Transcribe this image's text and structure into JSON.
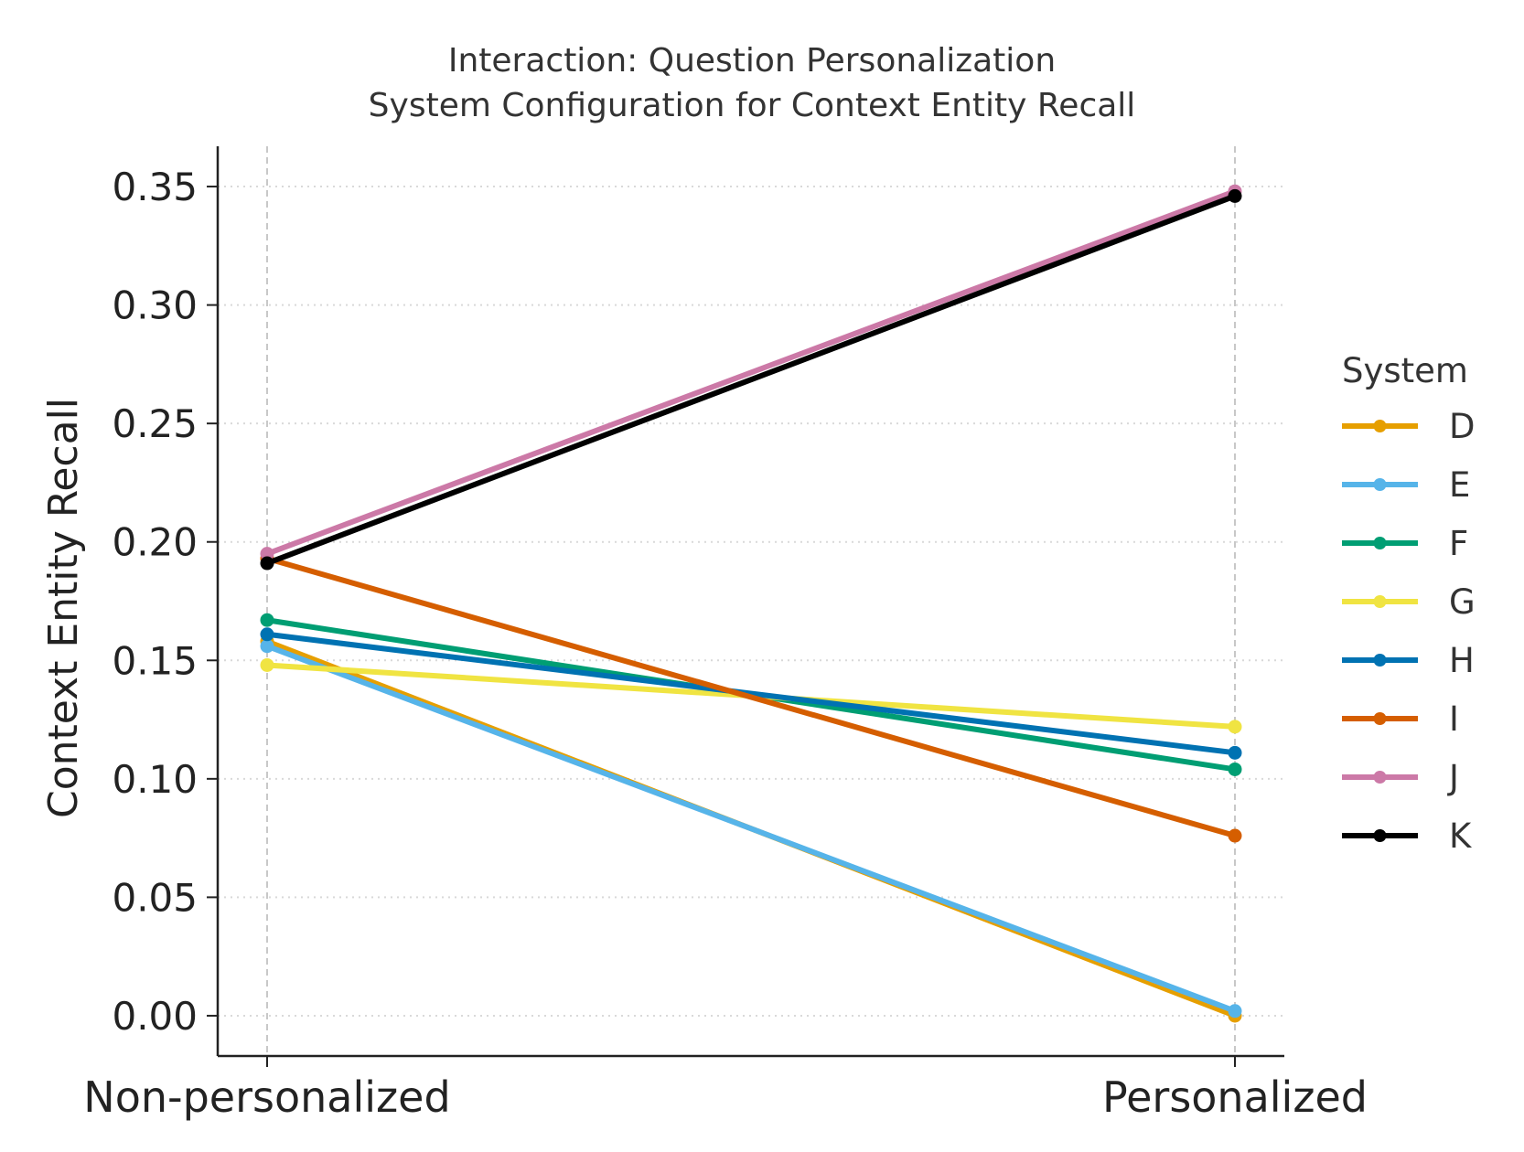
{
  "chart_data": {
    "type": "line",
    "title_lines": [
      "Interaction: Question Personalization",
      "System Configuration for Context Entity Recall"
    ],
    "xlabel": "",
    "ylabel": "Context Entity Recall",
    "categories": [
      "Non-personalized",
      "Personalized"
    ],
    "ylim": [
      -0.017,
      0.367
    ],
    "yticks": [
      0.0,
      0.05,
      0.1,
      0.15,
      0.2,
      0.25,
      0.3,
      0.35
    ],
    "ytick_labels": [
      "0.00",
      "0.05",
      "0.10",
      "0.15",
      "0.20",
      "0.25",
      "0.30",
      "0.35"
    ],
    "grid": true,
    "legend": {
      "title": "System",
      "position": "right"
    },
    "series": [
      {
        "name": "D",
        "color": "#E69F00",
        "values": [
          0.158,
          0.0
        ]
      },
      {
        "name": "E",
        "color": "#56B4E9",
        "values": [
          0.156,
          0.002
        ]
      },
      {
        "name": "F",
        "color": "#009E73",
        "values": [
          0.167,
          0.104
        ]
      },
      {
        "name": "G",
        "color": "#F0E442",
        "values": [
          0.148,
          0.122
        ]
      },
      {
        "name": "H",
        "color": "#0072B2",
        "values": [
          0.161,
          0.111
        ]
      },
      {
        "name": "I",
        "color": "#D55E00",
        "values": [
          0.193,
          0.076
        ]
      },
      {
        "name": "J",
        "color": "#CC79A7",
        "values": [
          0.195,
          0.348
        ]
      },
      {
        "name": "K",
        "color": "#000000",
        "values": [
          0.191,
          0.346
        ]
      }
    ]
  }
}
